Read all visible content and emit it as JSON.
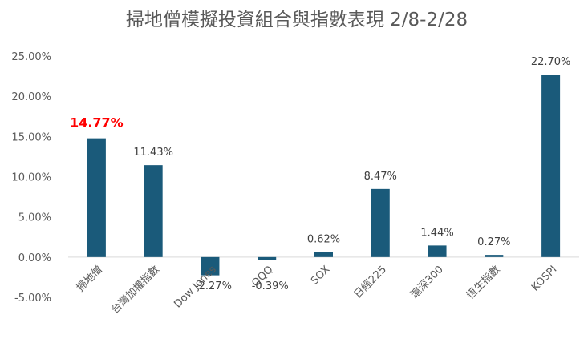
{
  "chart_data": {
    "type": "bar",
    "title": "掃地僧模擬投資組合與指數表現 2/8-2/28",
    "categories": [
      "掃地僧",
      "台灣加權指數",
      "Dow Jones",
      "QQQ",
      "SOX",
      "日經225",
      "滬深300",
      "恆生指數",
      "KOSPI"
    ],
    "values": [
      14.77,
      11.43,
      -2.27,
      -0.39,
      0.62,
      8.47,
      1.44,
      0.27,
      22.7
    ],
    "data_labels": [
      "14.77%",
      "11.43%",
      "-2.27%",
      "-0.39%",
      "0.62%",
      "8.47%",
      "1.44%",
      "0.27%",
      "22.70%"
    ],
    "y_ticks": [
      "-5.00%",
      "0.00%",
      "5.00%",
      "10.00%",
      "15.00%",
      "20.00%",
      "25.00%"
    ],
    "ylim": [
      -5,
      25
    ],
    "grid": false,
    "legend": "none",
    "bar_color": "#1a5a7a",
    "highlight_color": "#ff0000",
    "highlight_index": 0,
    "xlabel": "",
    "ylabel": ""
  }
}
